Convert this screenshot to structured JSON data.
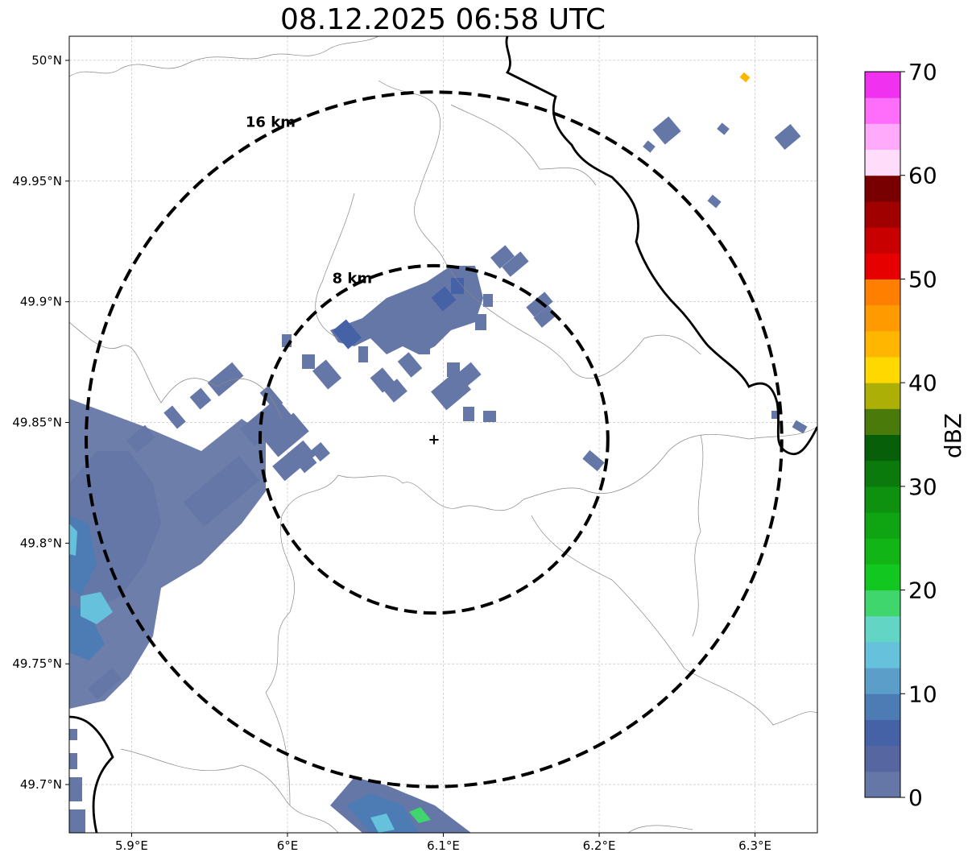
{
  "title": "08.12.2025 06:58 UTC",
  "map": {
    "lon_range": [
      5.86,
      6.34
    ],
    "lat_range": [
      49.68,
      50.01
    ],
    "lon_ticks": [
      {
        "value": 5.9,
        "label": "5.9°E"
      },
      {
        "value": 6.0,
        "label": "6°E"
      },
      {
        "value": 6.1,
        "label": "6.1°E"
      },
      {
        "value": 6.2,
        "label": "6.2°E"
      },
      {
        "value": 6.3,
        "label": "6.3°E"
      }
    ],
    "lat_ticks": [
      {
        "value": 49.7,
        "label": "49.7°N"
      },
      {
        "value": 49.75,
        "label": "49.75°N"
      },
      {
        "value": 49.8,
        "label": "49.8°N"
      },
      {
        "value": 49.85,
        "label": "49.85°N"
      },
      {
        "value": 49.9,
        "label": "49.9°N"
      },
      {
        "value": 49.95,
        "label": "49.95°N"
      },
      {
        "value": 50.0,
        "label": "50°N"
      }
    ],
    "grid": "on",
    "radar_site": {
      "lon": 6.094,
      "lat": 49.843
    },
    "range_rings": [
      {
        "radius_km": 8,
        "label": "8 km"
      },
      {
        "radius_km": 16,
        "label": "16 km"
      }
    ]
  },
  "colorbar": {
    "label": "dBZ",
    "min": 0,
    "max": 70,
    "ticks": [
      "0",
      "10",
      "20",
      "30",
      "40",
      "50",
      "60",
      "70"
    ],
    "colors": [
      "#6577a6",
      "#5666a1",
      "#4662a6",
      "#4d7bb3",
      "#5a9ec9",
      "#66c1dd",
      "#63d5c4",
      "#3fd66e",
      "#12c820",
      "#11b616",
      "#0fa412",
      "#0d910f",
      "#0a7a0d",
      "#075f09",
      "#4a7a0a",
      "#abaf06",
      "#ffd800",
      "#ffb600",
      "#ff9b00",
      "#ff7f00",
      "#e60000",
      "#c80000",
      "#a00000",
      "#780000",
      "#ffdcfa",
      "#ffaafa",
      "#ff6efa",
      "#f032f0"
    ]
  }
}
